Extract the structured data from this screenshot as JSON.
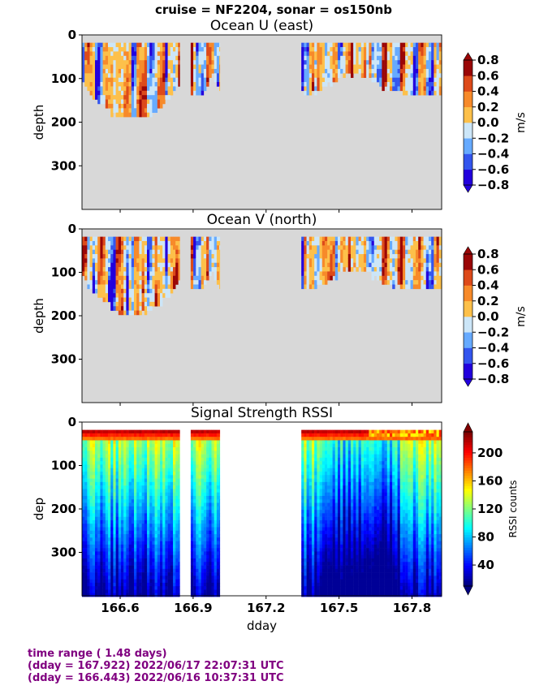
{
  "suptitle": "cruise = NF2204,  sonar = os150nb",
  "footer": {
    "line1": "time range ( 1.48 days)",
    "line2": "(dday = 167.922) 2022/06/17 22:07:31 UTC",
    "line3": "(dday = 166.443) 2022/06/16 10:37:31 UTC"
  },
  "colors": {
    "no_data_fill": "#d8d8d8",
    "footer_text": "#800080"
  },
  "chart_data": [
    {
      "type": "heatmap",
      "title": "Ocean U (east)",
      "ylabel": "depth",
      "xlabel": "",
      "xlim": [
        166.443,
        167.922
      ],
      "ylim": [
        400,
        0
      ],
      "yticks": [
        0,
        100,
        200,
        300
      ],
      "xticks": [
        166.6,
        166.9,
        167.2,
        167.5,
        167.8
      ],
      "colorbar": {
        "label": "m/s",
        "ticks": [
          0.8,
          0.6,
          0.4,
          0.2,
          0.0,
          -0.2,
          -0.4,
          -0.6,
          -0.8
        ],
        "tick_labels": [
          "0.8",
          "0.6",
          "0.4",
          "0.2",
          "0.0",
          "−0.2",
          "−0.4",
          "−0.6",
          "−0.8"
        ],
        "colormap": "jet-diverging",
        "range": [
          -0.8,
          0.8
        ]
      },
      "segments": [
        {
          "x_start": 166.443,
          "x_end": 166.845,
          "depth_max": 185
        },
        {
          "x_start": 166.89,
          "x_end": 167.01,
          "depth_max": 130
        },
        {
          "x_start": 167.345,
          "x_end": 167.922,
          "depth_max": 130
        }
      ]
    },
    {
      "type": "heatmap",
      "title": "Ocean V (north)",
      "ylabel": "depth",
      "xlabel": "",
      "xlim": [
        166.443,
        167.922
      ],
      "ylim": [
        400,
        0
      ],
      "yticks": [
        0,
        100,
        200,
        300
      ],
      "xticks": [
        166.6,
        166.9,
        167.2,
        167.5,
        167.8
      ],
      "colorbar": {
        "label": "m/s",
        "ticks": [
          0.8,
          0.6,
          0.4,
          0.2,
          0.0,
          -0.2,
          -0.4,
          -0.6,
          -0.8
        ],
        "tick_labels": [
          "0.8",
          "0.6",
          "0.4",
          "0.2",
          "0.0",
          "−0.2",
          "−0.4",
          "−0.6",
          "−0.8"
        ],
        "colormap": "jet-diverging",
        "range": [
          -0.8,
          0.8
        ]
      },
      "segments": [
        {
          "x_start": 166.443,
          "x_end": 166.845,
          "depth_max": 190
        },
        {
          "x_start": 166.89,
          "x_end": 167.01,
          "depth_max": 135
        },
        {
          "x_start": 167.345,
          "x_end": 167.922,
          "depth_max": 135
        }
      ]
    },
    {
      "type": "heatmap",
      "title": "Signal Strength RSSI",
      "ylabel": "dep",
      "xlabel": "dday",
      "xlim": [
        166.443,
        167.922
      ],
      "ylim": [
        400,
        0
      ],
      "yticks": [
        0,
        100,
        200,
        300
      ],
      "xticks": [
        166.6,
        166.9,
        167.2,
        167.5,
        167.8
      ],
      "colorbar": {
        "label": "RSSI counts",
        "ticks": [
          200,
          160,
          120,
          80,
          40
        ],
        "tick_labels": [
          "200",
          "160",
          "120",
          "80",
          "40"
        ],
        "colormap": "jet",
        "range": [
          10,
          230
        ]
      },
      "segments": [
        {
          "x_start": 166.443,
          "x_end": 166.845,
          "depth_max": 400
        },
        {
          "x_start": 166.89,
          "x_end": 167.01,
          "depth_max": 400
        },
        {
          "x_start": 167.345,
          "x_end": 167.922,
          "depth_max": 400
        }
      ]
    }
  ]
}
